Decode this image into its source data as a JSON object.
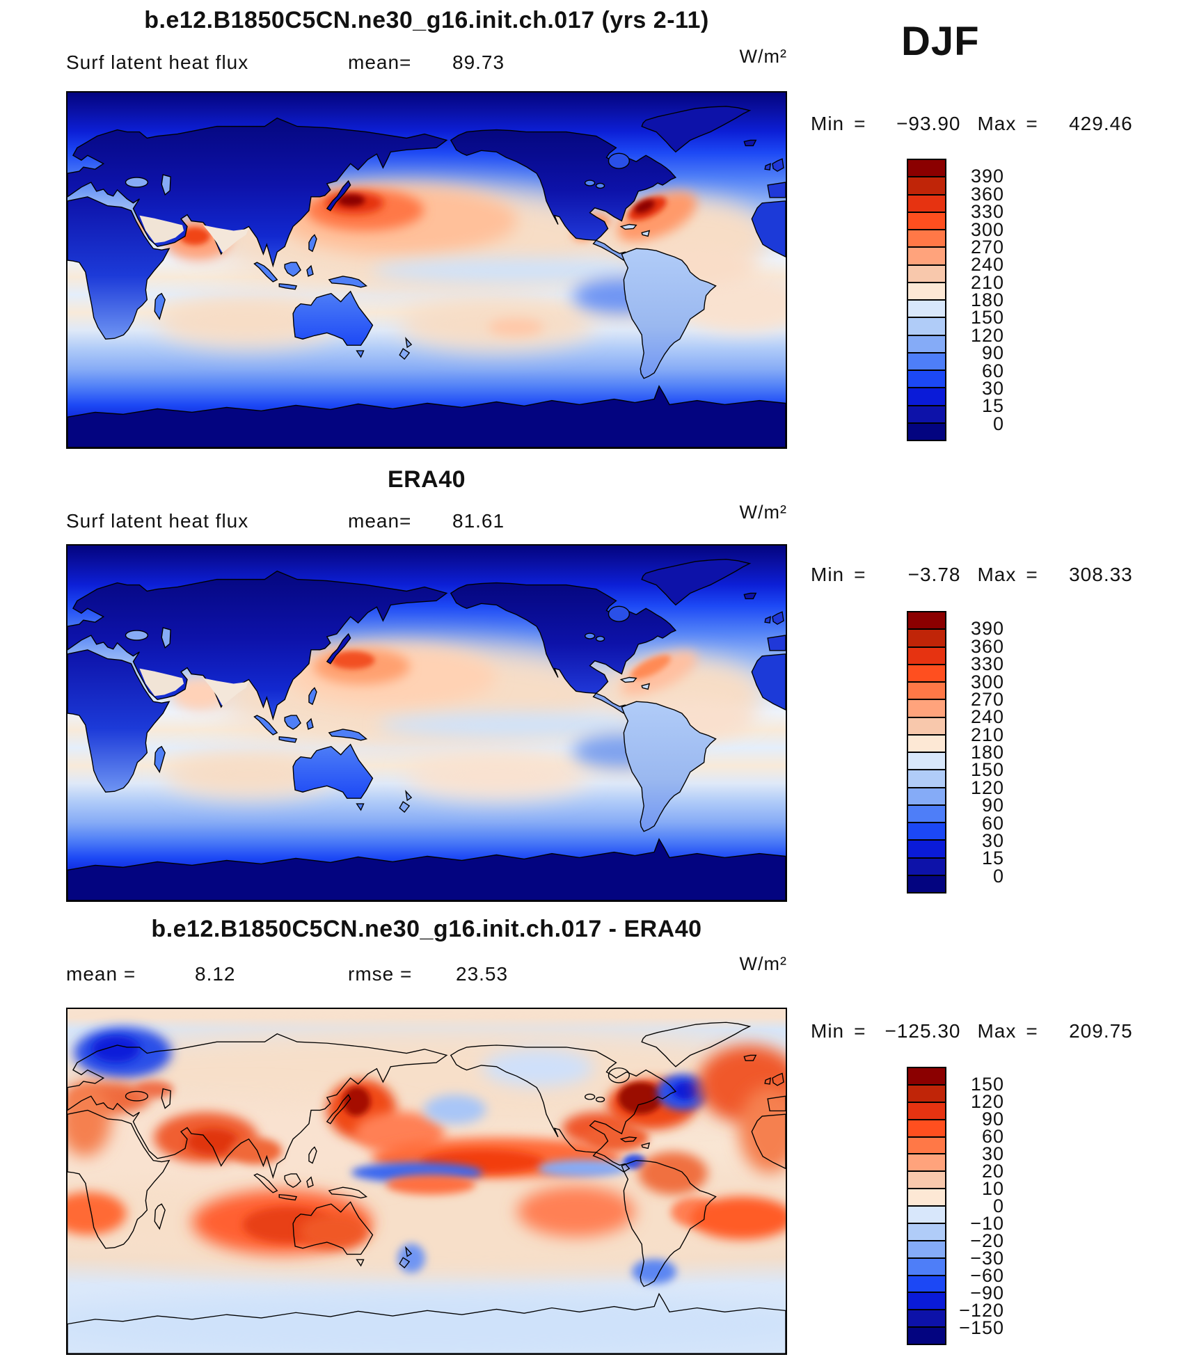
{
  "season_label": "DJF",
  "palette": [
    "#8B0000",
    "#C02508",
    "#E63311",
    "#FF4F1F",
    "#FF7847",
    "#FFA37C",
    "#F8C8AC",
    "#FDE8D5",
    "#D8E7FB",
    "#B0CCF8",
    "#85ABF7",
    "#4E7EF8",
    "#1C48F5",
    "#0A1BD8",
    "#0D12A9",
    "#030480"
  ],
  "chart_data": [
    {
      "type": "heatmap",
      "title": "b.e12.B1850C5CN.ne30_g16.init.ch.017 (yrs 2-11)",
      "var_label": "Surf latent heat flux",
      "mean_label": "mean=",
      "mean": "89.73",
      "units": "W/m²",
      "min_label": "Min",
      "eq": "=",
      "min": "−93.90",
      "max_label": "Max",
      "max": "429.46",
      "levels": [
        "390",
        "360",
        "330",
        "300",
        "270",
        "240",
        "210",
        "180",
        "150",
        "120",
        "90",
        "60",
        "30",
        "15",
        "0"
      ],
      "legend_position": "right",
      "projection": "global lat-lon"
    },
    {
      "type": "heatmap",
      "title": "ERA40",
      "var_label": "Surf latent heat flux",
      "mean_label": "mean=",
      "mean": "81.61",
      "units": "W/m²",
      "min_label": "Min",
      "eq": "=",
      "min": "−3.78",
      "max_label": "Max",
      "max": "308.33",
      "levels": [
        "390",
        "360",
        "330",
        "300",
        "270",
        "240",
        "210",
        "180",
        "150",
        "120",
        "90",
        "60",
        "30",
        "15",
        "0"
      ],
      "legend_position": "right",
      "projection": "global lat-lon"
    },
    {
      "type": "heatmap",
      "title": "b.e12.B1850C5CN.ne30_g16.init.ch.017 - ERA40",
      "mean_label": "mean =",
      "mean": "8.12",
      "rmse_label": "rmse =",
      "rmse": "23.53",
      "units": "W/m²",
      "min_label": "Min",
      "eq": "=",
      "min": "−125.30",
      "max_label": "Max",
      "max": "209.75",
      "levels": [
        "150",
        "120",
        "90",
        "60",
        "30",
        "20",
        "10",
        "0",
        "−10",
        "−20",
        "−30",
        "−60",
        "−90",
        "−120",
        "−150"
      ],
      "legend_position": "right",
      "projection": "global lat-lon"
    }
  ]
}
